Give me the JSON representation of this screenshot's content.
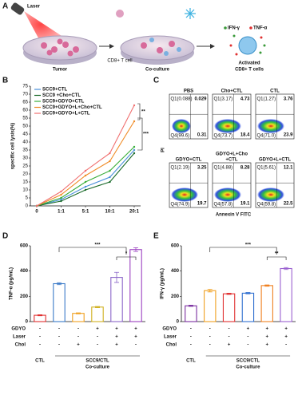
{
  "panel_labels": [
    "A",
    "B",
    "C",
    "D",
    "E"
  ],
  "panel_a": {
    "laser": "Laser",
    "tumor": "Tumor",
    "t_cell": "CD8+ T cell",
    "coculture": "Co-culture",
    "ifn": "IFN-γ",
    "tnf": "TNF-α",
    "activated": [
      "Activated",
      "CD8+ T cells"
    ]
  },
  "chart_data": [
    {
      "type": "line",
      "y_label": "specific cell lysis(%)",
      "categories": [
        "0",
        "1:1",
        "5:1",
        "10:1",
        "20:1"
      ],
      "ylim": [
        0,
        75
      ],
      "yticks": [
        0,
        5,
        10,
        15,
        20,
        25,
        30,
        35,
        40,
        45,
        50,
        55,
        60,
        65,
        70,
        75
      ],
      "series": [
        {
          "name": "SCC9+CTL",
          "color": "#4a90d9",
          "values": [
            0,
            4,
            12,
            18,
            35
          ]
        },
        {
          "name": "SCC9 +Cho+CTL",
          "color": "#1a6b2a",
          "values": [
            0,
            3,
            10,
            15,
            33
          ]
        },
        {
          "name": "SCC9+GDYO+CTL",
          "color": "#3aae3a",
          "values": [
            0,
            5,
            15,
            22,
            37
          ]
        },
        {
          "name": "SCC9+GDYO+L+Cho+CTL",
          "color": "#f08a24",
          "values": [
            0,
            7,
            19,
            28,
            53
          ]
        },
        {
          "name": "SCC9+GDYO+L+CTL",
          "color": "#f07070",
          "values": [
            0,
            9,
            22,
            33,
            63
          ]
        }
      ],
      "annotations": [
        "**",
        "***"
      ]
    },
    {
      "type": "bar",
      "y_label": "TNF-α (pg/mL)",
      "ylim": [
        0,
        600
      ],
      "yticks": [
        0,
        200,
        400,
        600
      ],
      "values": [
        50,
        300,
        65,
        115,
        350,
        570
      ],
      "errors": [
        4,
        8,
        4,
        5,
        40,
        15
      ],
      "colors": [
        "#e03030",
        "#3a7ac8",
        "#f0a020",
        "#d0b020",
        "#8a66c8",
        "#9a40c0"
      ],
      "conditions": [
        {
          "name": "GDYO",
          "signs": [
            "-",
            "-",
            "-",
            "+",
            "+",
            "+"
          ]
        },
        {
          "name": "Laser",
          "signs": [
            "-",
            "-",
            "-",
            "-",
            "+",
            "+"
          ]
        },
        {
          "name": "Chol",
          "signs": [
            "-",
            "-",
            "+",
            "-",
            "+",
            "-"
          ]
        }
      ],
      "groups": [
        [
          "CTL"
        ],
        [
          "SCC9/CTL",
          "Co-culture"
        ]
      ],
      "annotations": [
        "***",
        "*"
      ]
    },
    {
      "type": "bar",
      "y_label": "IFN-γ (pg/mL)",
      "ylim": [
        0,
        600
      ],
      "yticks": [
        0,
        200,
        400,
        600
      ],
      "values": [
        125,
        245,
        220,
        225,
        285,
        420
      ],
      "errors": [
        5,
        10,
        5,
        5,
        5,
        8
      ],
      "colors": [
        "#7b2fa0",
        "#f0a020",
        "#e03030",
        "#3070d0",
        "#f08020",
        "#9a60d0"
      ],
      "conditions": [
        {
          "name": "GDYO",
          "signs": [
            "-",
            "-",
            "-",
            "+",
            "+",
            "+"
          ]
        },
        {
          "name": "Laser",
          "signs": [
            "-",
            "-",
            "-",
            "-",
            "+",
            "+"
          ]
        },
        {
          "name": "Chol",
          "signs": [
            "-",
            "-",
            "+",
            "-",
            "+",
            "-"
          ]
        }
      ],
      "groups": [
        [
          "CTL"
        ],
        [
          "SCC9/CTL",
          "Co-culture"
        ]
      ],
      "annotations": [
        "***",
        "**"
      ]
    }
  ],
  "panel_c": {
    "y_label": "PI",
    "x_label": "Annexin V FITC",
    "plots": [
      {
        "title": [
          "PBS"
        ],
        "q1": "Q1(0.088)",
        "q2": "0.029",
        "q4": "Q4(99.6)",
        "q3": "0.31"
      },
      {
        "title": [
          "Cho+CTL"
        ],
        "q1": "Q1(3.17)",
        "q2": "4.73",
        "q4": "Q4(73.7)",
        "q3": "18.4"
      },
      {
        "title": [
          "CTL"
        ],
        "q1": "Q1(1.27)",
        "q2": "3.76",
        "q4": "Q4(71.0)",
        "q3": "23.9"
      },
      {
        "title": [
          "GDYO+CTL"
        ],
        "q1": "Q1(2.19)",
        "q2": "3.25",
        "q4": "Q4(74.9)",
        "q3": "19.7"
      },
      {
        "title": [
          "GDYO+L+Cho",
          "+CTL"
        ],
        "q1": "Q1(4.88)",
        "q2": "8.28",
        "q4": "Q4(57.8)",
        "q3": "19.1"
      },
      {
        "title": [
          "GDYO+L+CTL"
        ],
        "q1": "Q1(5.61)",
        "q2": "12.1",
        "q4": "Q4(59.8)",
        "q3": "22.5"
      }
    ]
  }
}
